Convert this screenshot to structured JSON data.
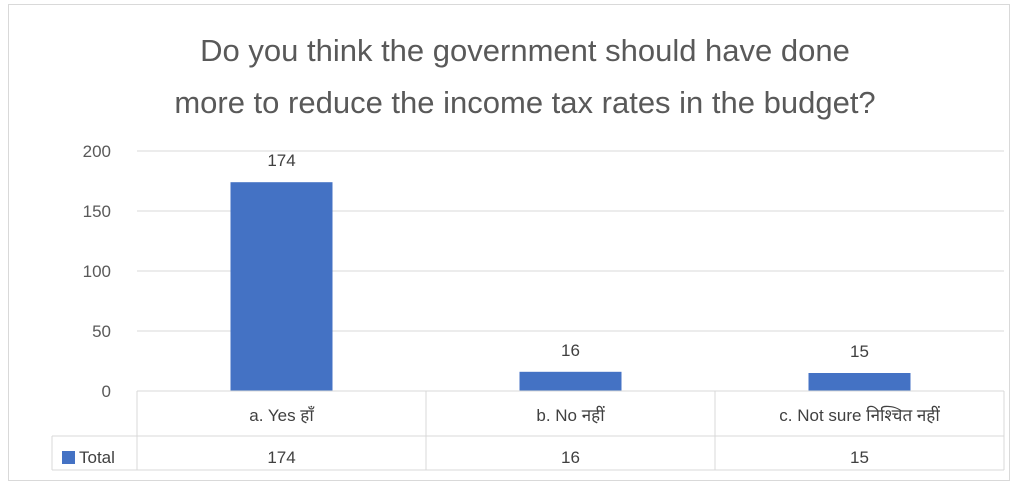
{
  "chart_data": {
    "type": "bar",
    "title_lines": [
      "Do you think the government should have done",
      "more to reduce the income tax rates in the budget?"
    ],
    "categories": [
      "a. Yes हाँ",
      "b. No नहीं",
      "c. Not sure निश्चित  नहीं"
    ],
    "series": [
      {
        "name": "Total",
        "values": [
          174,
          16,
          15
        ],
        "color": "#4472c4"
      }
    ],
    "ylim": [
      0,
      200
    ],
    "yticks": [
      "0",
      "50",
      "100",
      "150",
      "200"
    ],
    "grid": true,
    "legend": "data-table",
    "table_values": [
      "174",
      "16",
      "15"
    ]
  }
}
